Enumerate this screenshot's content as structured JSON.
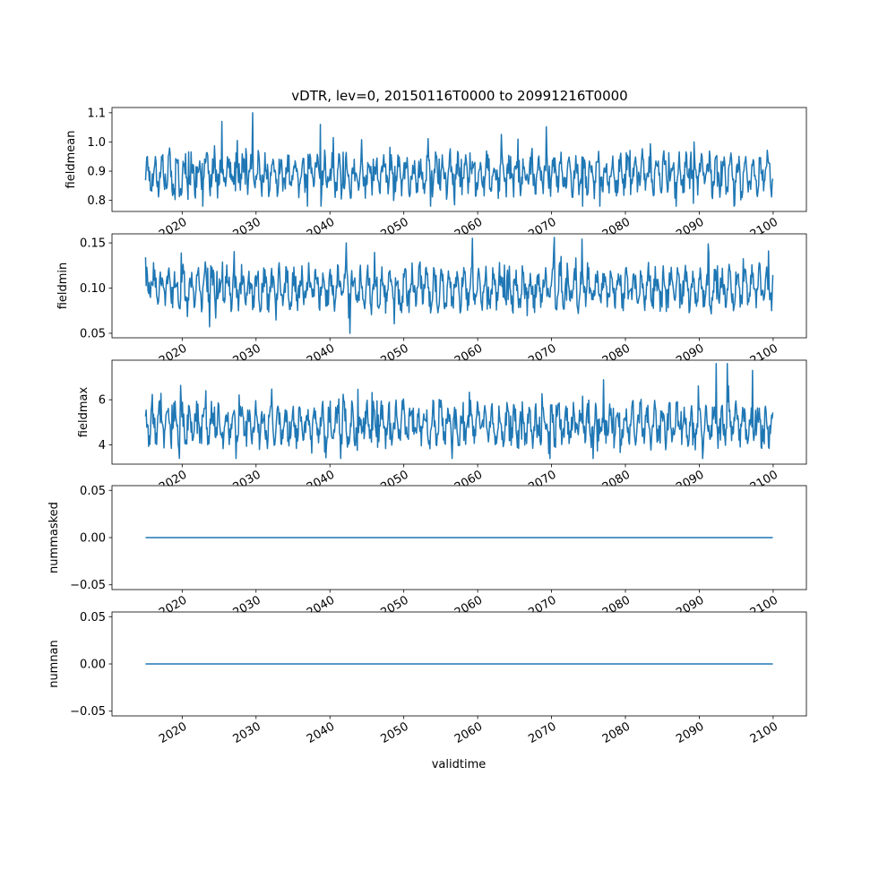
{
  "chart_data": {
    "type": "line",
    "title": "vDTR, lev=0, 20150116T0000 to 20991216T0000",
    "xlabel": "validtime",
    "x_tick_labels": [
      "2020",
      "2030",
      "2040",
      "2050",
      "2060",
      "2070",
      "2080",
      "2090",
      "2100"
    ],
    "x_tick_values": [
      2020,
      2030,
      2040,
      2050,
      2060,
      2070,
      2080,
      2090,
      2100
    ],
    "xlim": [
      2010.5,
      2104.5
    ],
    "x_start": "2015-01-16",
    "x_end": "2099-12-16",
    "color": "#1f77b4",
    "subplots": [
      {
        "ylabel": "fieldmean",
        "ylim": [
          0.762,
          1.118
        ],
        "yticks": [
          0.8,
          0.9,
          1.0,
          1.1
        ],
        "ytick_labels": [
          "0.8",
          "0.9",
          "1.0",
          "1.1"
        ],
        "y_min": 0.78,
        "y_max": 1.1,
        "y_base": 0.89,
        "peaks": [
          {
            "x": 2025.4,
            "y": 1.07
          },
          {
            "x": 2029.5,
            "y": 1.1
          },
          {
            "x": 2038.7,
            "y": 1.06
          },
          {
            "x": 2074.2,
            "y": 0.78
          },
          {
            "x": 2076.5,
            "y": 0.78
          },
          {
            "x": 2089.2,
            "y": 0.79
          },
          {
            "x": 2099.6,
            "y": 0.86
          }
        ]
      },
      {
        "ylabel": "fieldmin",
        "ylim": [
          0.045,
          0.16
        ],
        "yticks": [
          0.05,
          0.1,
          0.15
        ],
        "ytick_labels": [
          "0.05",
          "0.10",
          "0.15"
        ],
        "y_min": 0.05,
        "y_max": 0.156,
        "y_base": 0.1,
        "peaks": [
          {
            "x": 2042.2,
            "y": 0.15
          },
          {
            "x": 2042.7,
            "y": 0.05
          },
          {
            "x": 2059.3,
            "y": 0.155
          },
          {
            "x": 2070.4,
            "y": 0.156
          },
          {
            "x": 2099.8,
            "y": 0.075
          }
        ]
      },
      {
        "ylabel": "fieldmax",
        "ylim": [
          3.15,
          7.75
        ],
        "yticks": [
          4,
          6
        ],
        "ytick_labels": [
          "4",
          "6"
        ],
        "y_min": 3.4,
        "y_max": 7.6,
        "y_base": 4.9,
        "peaks": [
          {
            "x": 2092.3,
            "y": 7.6
          },
          {
            "x": 2093.8,
            "y": 7.6
          },
          {
            "x": 2097.2,
            "y": 7.3
          },
          {
            "x": 2069.8,
            "y": 3.4
          }
        ]
      },
      {
        "ylabel": "nummasked",
        "ylim": [
          -0.055,
          0.055
        ],
        "yticks": [
          -0.05,
          0.0,
          0.05
        ],
        "ytick_labels": [
          "−0.05",
          "0.00",
          "0.05"
        ],
        "constant": 0
      },
      {
        "ylabel": "numnan",
        "ylim": [
          -0.055,
          0.055
        ],
        "yticks": [
          -0.05,
          0.0,
          0.05
        ],
        "ytick_labels": [
          "−0.05",
          "0.00",
          "0.05"
        ],
        "constant": 0
      }
    ]
  }
}
